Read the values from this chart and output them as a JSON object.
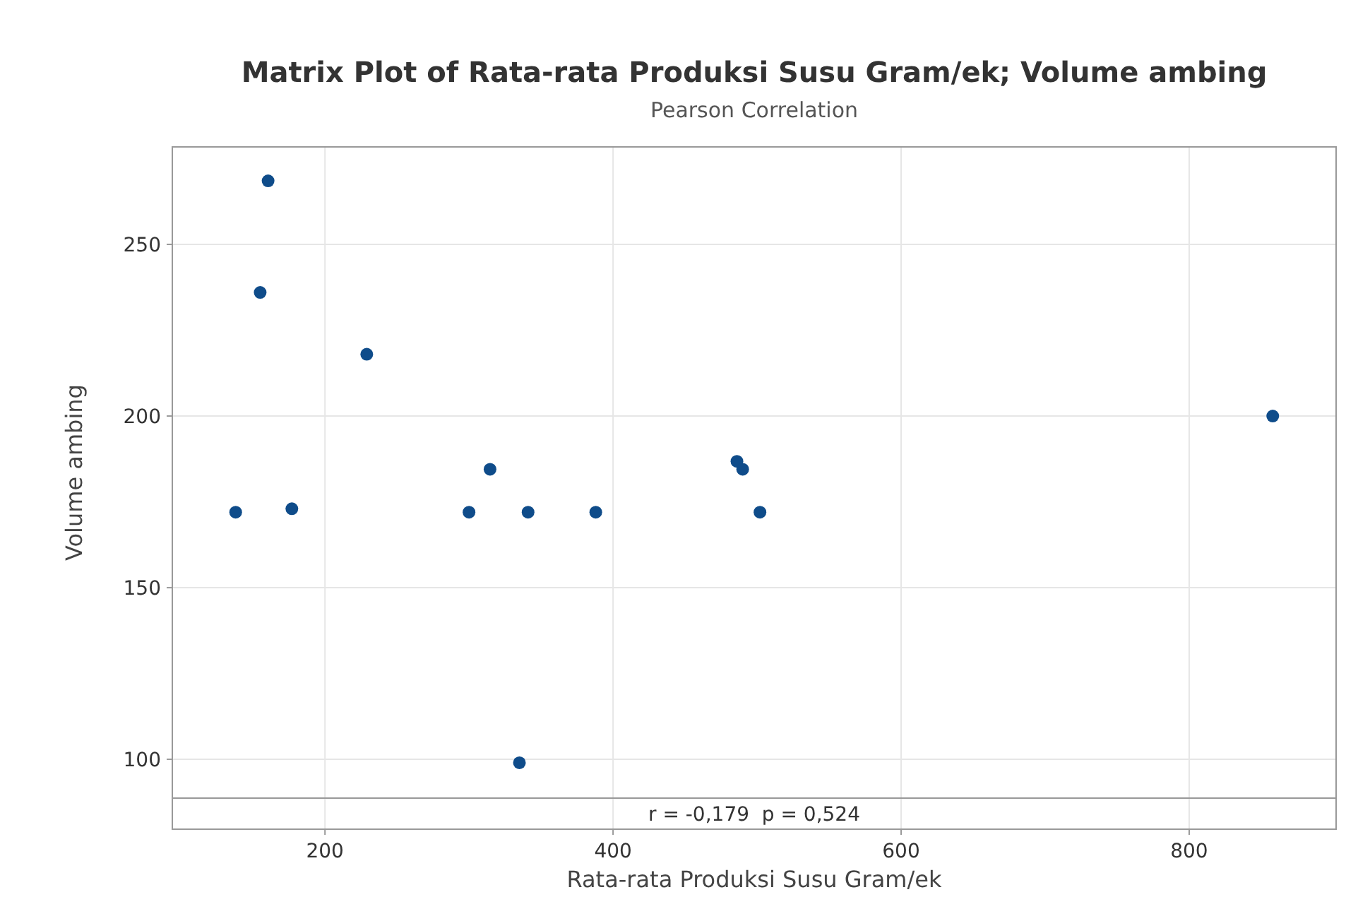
{
  "chart_data": {
    "type": "scatter",
    "title": "Matrix Plot of Rata-rata Produksi Susu Gram/ek; Volume ambing",
    "subtitle": "Pearson Correlation",
    "xlabel": "Rata-rata Produksi Susu Gram/ek",
    "ylabel": "Volume ambing",
    "xlim": [
      94,
      902
    ],
    "xticks": [
      200,
      400,
      600,
      800
    ],
    "ylim": [
      88.7,
      278.4
    ],
    "yticks": [
      100,
      150,
      200,
      250
    ],
    "grid": true,
    "marker": "circle",
    "series": [
      {
        "color": "#0f4c8a",
        "x": [
          138,
          160.5,
          155,
          177,
          229,
          300,
          314.6,
          341,
          335,
          388,
          486,
          490,
          502,
          858
        ],
        "values": [
          172,
          268.5,
          236,
          173,
          218,
          172,
          184.5,
          172,
          99,
          172,
          186.8,
          184.5,
          172,
          200
        ]
      }
    ],
    "annotations": [
      "r = -0,179  p = 0,524"
    ]
  }
}
